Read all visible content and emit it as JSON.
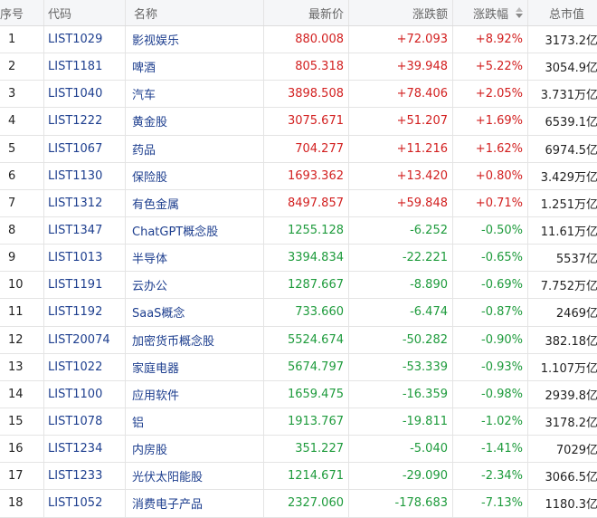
{
  "columns": {
    "idx": "序号",
    "code": "代码",
    "name": "名称",
    "price": "最新价",
    "change": "涨跌额",
    "pct": "涨跌幅",
    "cap": "总市值"
  },
  "colors": {
    "up": "#d21f1f",
    "down": "#1e9b3c",
    "link": "#1e3f8f"
  },
  "sort_icon": "sort-desc-icon",
  "rows": [
    {
      "idx": "1",
      "code": "LIST1029",
      "name": "影视娱乐",
      "price": "880.008",
      "change": "+72.093",
      "pct": "+8.92%",
      "cap": "3173.2亿",
      "dir": "up"
    },
    {
      "idx": "2",
      "code": "LIST1181",
      "name": "啤酒",
      "price": "805.318",
      "change": "+39.948",
      "pct": "+5.22%",
      "cap": "3054.9亿",
      "dir": "up"
    },
    {
      "idx": "3",
      "code": "LIST1040",
      "name": "汽车",
      "price": "3898.508",
      "change": "+78.406",
      "pct": "+2.05%",
      "cap": "3.731万亿",
      "dir": "up"
    },
    {
      "idx": "4",
      "code": "LIST1222",
      "name": "黄金股",
      "price": "3075.671",
      "change": "+51.207",
      "pct": "+1.69%",
      "cap": "6539.1亿",
      "dir": "up"
    },
    {
      "idx": "5",
      "code": "LIST1067",
      "name": "药品",
      "price": "704.277",
      "change": "+11.216",
      "pct": "+1.62%",
      "cap": "6974.5亿",
      "dir": "up"
    },
    {
      "idx": "6",
      "code": "LIST1130",
      "name": "保险股",
      "price": "1693.362",
      "change": "+13.420",
      "pct": "+0.80%",
      "cap": "3.429万亿",
      "dir": "up"
    },
    {
      "idx": "7",
      "code": "LIST1312",
      "name": "有色金属",
      "price": "8497.857",
      "change": "+59.848",
      "pct": "+0.71%",
      "cap": "1.251万亿",
      "dir": "up"
    },
    {
      "idx": "8",
      "code": "LIST1347",
      "name": "ChatGPT概念股",
      "price": "1255.128",
      "change": "-6.252",
      "pct": "-0.50%",
      "cap": "11.61万亿",
      "dir": "down"
    },
    {
      "idx": "9",
      "code": "LIST1013",
      "name": "半导体",
      "price": "3394.834",
      "change": "-22.221",
      "pct": "-0.65%",
      "cap": "5537亿",
      "dir": "down"
    },
    {
      "idx": "10",
      "code": "LIST1191",
      "name": "云办公",
      "price": "1287.667",
      "change": "-8.890",
      "pct": "-0.69%",
      "cap": "7.752万亿",
      "dir": "down"
    },
    {
      "idx": "11",
      "code": "LIST1192",
      "name": "SaaS概念",
      "price": "733.660",
      "change": "-6.474",
      "pct": "-0.87%",
      "cap": "2469亿",
      "dir": "down"
    },
    {
      "idx": "12",
      "code": "LIST20074",
      "name": "加密货币概念股",
      "price": "5524.674",
      "change": "-50.282",
      "pct": "-0.90%",
      "cap": "382.18亿",
      "dir": "down"
    },
    {
      "idx": "13",
      "code": "LIST1022",
      "name": "家庭电器",
      "price": "5674.797",
      "change": "-53.339",
      "pct": "-0.93%",
      "cap": "1.107万亿",
      "dir": "down"
    },
    {
      "idx": "14",
      "code": "LIST1100",
      "name": "应用软件",
      "price": "1659.475",
      "change": "-16.359",
      "pct": "-0.98%",
      "cap": "2939.8亿",
      "dir": "down"
    },
    {
      "idx": "15",
      "code": "LIST1078",
      "name": "铝",
      "price": "1913.767",
      "change": "-19.811",
      "pct": "-1.02%",
      "cap": "3178.2亿",
      "dir": "down"
    },
    {
      "idx": "16",
      "code": "LIST1234",
      "name": "内房股",
      "price": "351.227",
      "change": "-5.040",
      "pct": "-1.41%",
      "cap": "7029亿",
      "dir": "down"
    },
    {
      "idx": "17",
      "code": "LIST1233",
      "name": "光伏太阳能股",
      "price": "1214.671",
      "change": "-29.090",
      "pct": "-2.34%",
      "cap": "3066.5亿",
      "dir": "down"
    },
    {
      "idx": "18",
      "code": "LIST1052",
      "name": "消费电子产品",
      "price": "2327.060",
      "change": "-178.683",
      "pct": "-7.13%",
      "cap": "1180.3亿",
      "dir": "down"
    }
  ]
}
